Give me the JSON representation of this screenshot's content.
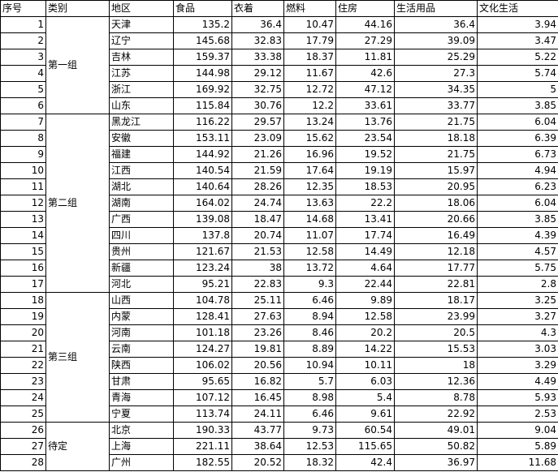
{
  "headers": [
    "序号",
    "类别",
    "地区",
    "食品",
    "衣着",
    "燃料",
    "住房",
    "生活用品",
    "文化生活"
  ],
  "groups": [
    {
      "label": "第一组",
      "rows": [
        {
          "id": "1",
          "region": "天津",
          "food": "135.2",
          "clothing": "36.4",
          "fuel": "10.47",
          "housing": "44.16",
          "goods": "36.4",
          "culture": "3.94"
        },
        {
          "id": "2",
          "region": "辽宁",
          "food": "145.68",
          "clothing": "32.83",
          "fuel": "17.79",
          "housing": "27.29",
          "goods": "39.09",
          "culture": "3.47"
        },
        {
          "id": "3",
          "region": "吉林",
          "food": "159.37",
          "clothing": "33.38",
          "fuel": "18.37",
          "housing": "11.81",
          "goods": "25.29",
          "culture": "5.22"
        },
        {
          "id": "4",
          "region": "江苏",
          "food": "144.98",
          "clothing": "29.12",
          "fuel": "11.67",
          "housing": "42.6",
          "goods": "27.3",
          "culture": "5.74"
        },
        {
          "id": "5",
          "region": "浙江",
          "food": "169.92",
          "clothing": "32.75",
          "fuel": "12.72",
          "housing": "47.12",
          "goods": "34.35",
          "culture": "5"
        },
        {
          "id": "6",
          "region": "山东",
          "food": "115.84",
          "clothing": "30.76",
          "fuel": "12.2",
          "housing": "33.61",
          "goods": "33.77",
          "culture": "3.85"
        }
      ]
    },
    {
      "label": "第二组",
      "rows": [
        {
          "id": "7",
          "region": "黑龙江",
          "food": "116.22",
          "clothing": "29.57",
          "fuel": "13.24",
          "housing": "13.76",
          "goods": "21.75",
          "culture": "6.04"
        },
        {
          "id": "8",
          "region": "安徽",
          "food": "153.11",
          "clothing": "23.09",
          "fuel": "15.62",
          "housing": "23.54",
          "goods": "18.18",
          "culture": "6.39"
        },
        {
          "id": "9",
          "region": "福建",
          "food": "144.92",
          "clothing": "21.26",
          "fuel": "16.96",
          "housing": "19.52",
          "goods": "21.75",
          "culture": "6.73"
        },
        {
          "id": "10",
          "region": "江西",
          "food": "140.54",
          "clothing": "21.59",
          "fuel": "17.64",
          "housing": "19.19",
          "goods": "15.97",
          "culture": "4.94"
        },
        {
          "id": "11",
          "region": "湖北",
          "food": "140.64",
          "clothing": "28.26",
          "fuel": "12.35",
          "housing": "18.53",
          "goods": "20.95",
          "culture": "6.23"
        },
        {
          "id": "12",
          "region": "湖南",
          "food": "164.02",
          "clothing": "24.74",
          "fuel": "13.63",
          "housing": "22.2",
          "goods": "18.06",
          "culture": "6.04"
        },
        {
          "id": "13",
          "region": "广西",
          "food": "139.08",
          "clothing": "18.47",
          "fuel": "14.68",
          "housing": "13.41",
          "goods": "20.66",
          "culture": "3.85"
        },
        {
          "id": "14",
          "region": "四川",
          "food": "137.8",
          "clothing": "20.74",
          "fuel": "11.07",
          "housing": "17.74",
          "goods": "16.49",
          "culture": "4.39"
        },
        {
          "id": "15",
          "region": "贵州",
          "food": "121.67",
          "clothing": "21.53",
          "fuel": "12.58",
          "housing": "14.49",
          "goods": "12.18",
          "culture": "4.57"
        },
        {
          "id": "16",
          "region": "新疆",
          "food": "123.24",
          "clothing": "38",
          "fuel": "13.72",
          "housing": "4.64",
          "goods": "17.77",
          "culture": "5.75"
        },
        {
          "id": "17",
          "region": "河北",
          "food": "95.21",
          "clothing": "22.83",
          "fuel": "9.3",
          "housing": "22.44",
          "goods": "22.81",
          "culture": "2.8"
        }
      ]
    },
    {
      "label": "第三组",
      "rows": [
        {
          "id": "18",
          "region": "山西",
          "food": "104.78",
          "clothing": "25.11",
          "fuel": "6.46",
          "housing": "9.89",
          "goods": "18.17",
          "culture": "3.25"
        },
        {
          "id": "19",
          "region": "内蒙",
          "food": "128.41",
          "clothing": "27.63",
          "fuel": "8.94",
          "housing": "12.58",
          "goods": "23.99",
          "culture": "3.27"
        },
        {
          "id": "20",
          "region": "河南",
          "food": "101.18",
          "clothing": "23.26",
          "fuel": "8.46",
          "housing": "20.2",
          "goods": "20.5",
          "culture": "4.3"
        },
        {
          "id": "21",
          "region": "云南",
          "food": "124.27",
          "clothing": "19.81",
          "fuel": "8.89",
          "housing": "14.22",
          "goods": "15.53",
          "culture": "3.03"
        },
        {
          "id": "22",
          "region": "陕西",
          "food": "106.02",
          "clothing": "20.56",
          "fuel": "10.94",
          "housing": "10.11",
          "goods": "18",
          "culture": "3.29"
        },
        {
          "id": "23",
          "region": "甘肃",
          "food": "95.65",
          "clothing": "16.82",
          "fuel": "5.7",
          "housing": "6.03",
          "goods": "12.36",
          "culture": "4.49"
        },
        {
          "id": "24",
          "region": "青海",
          "food": "107.12",
          "clothing": "16.45",
          "fuel": "8.98",
          "housing": "5.4",
          "goods": "8.78",
          "culture": "5.93"
        },
        {
          "id": "25",
          "region": "宁夏",
          "food": "113.74",
          "clothing": "24.11",
          "fuel": "6.46",
          "housing": "9.61",
          "goods": "22.92",
          "culture": "2.53"
        }
      ]
    },
    {
      "label": "待定",
      "rows": [
        {
          "id": "26",
          "region": "北京",
          "food": "190.33",
          "clothing": "43.77",
          "fuel": "9.73",
          "housing": "60.54",
          "goods": "49.01",
          "culture": "9.04"
        },
        {
          "id": "27",
          "region": "上海",
          "food": "221.11",
          "clothing": "38.64",
          "fuel": "12.53",
          "housing": "115.65",
          "goods": "50.82",
          "culture": "5.89"
        },
        {
          "id": "28",
          "region": "广州",
          "food": "182.55",
          "clothing": "20.52",
          "fuel": "18.32",
          "housing": "42.4",
          "goods": "36.97",
          "culture": "11.68"
        }
      ]
    }
  ]
}
